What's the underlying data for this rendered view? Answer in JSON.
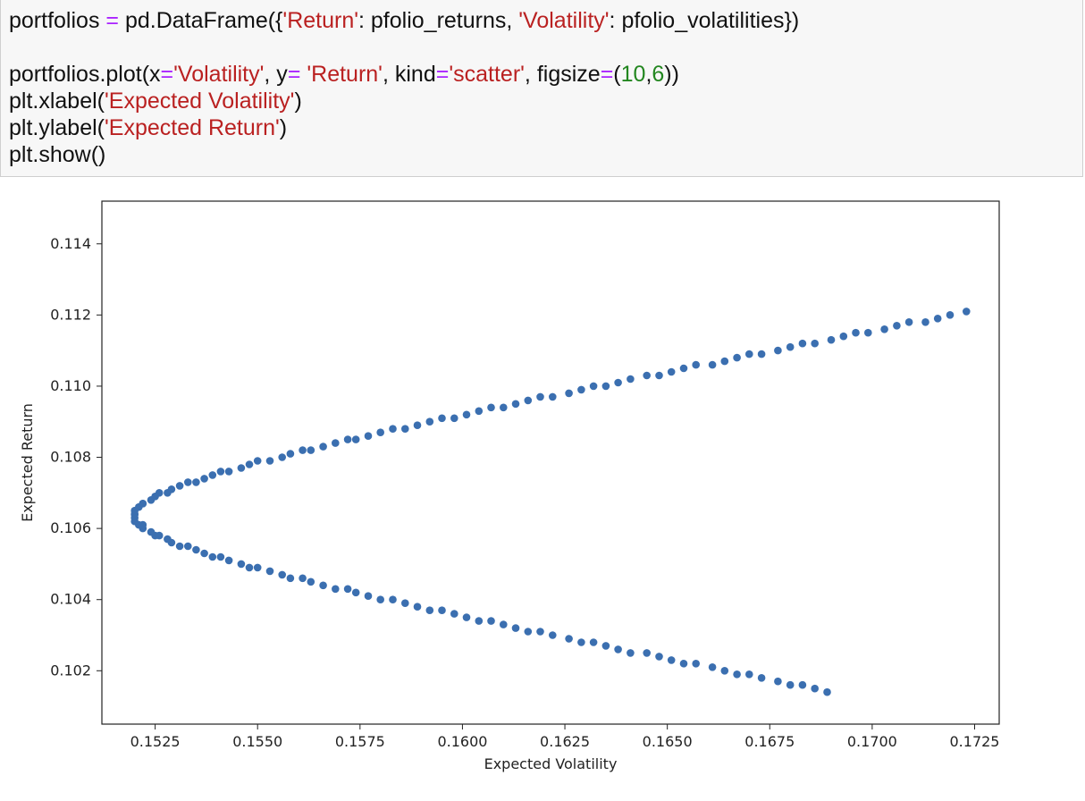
{
  "code_cell": {
    "lines": [
      [
        {
          "t": "text",
          "v": "portfolios "
        },
        {
          "t": "op",
          "v": "="
        },
        {
          "t": "text",
          "v": " pd.DataFrame({"
        },
        {
          "t": "str",
          "v": "'Return'"
        },
        {
          "t": "text",
          "v": ": pfolio_returns, "
        },
        {
          "t": "str",
          "v": "'Volatility'"
        },
        {
          "t": "text",
          "v": ": pfolio_volatilities})"
        }
      ],
      [],
      [
        {
          "t": "text",
          "v": "portfolios.plot(x"
        },
        {
          "t": "op",
          "v": "="
        },
        {
          "t": "str",
          "v": "'Volatility'"
        },
        {
          "t": "text",
          "v": ", y"
        },
        {
          "t": "op",
          "v": "="
        },
        {
          "t": "text",
          "v": " "
        },
        {
          "t": "str",
          "v": "'Return'"
        },
        {
          "t": "text",
          "v": ", kind"
        },
        {
          "t": "op",
          "v": "="
        },
        {
          "t": "str",
          "v": "'scatter'"
        },
        {
          "t": "text",
          "v": ", figsize"
        },
        {
          "t": "op",
          "v": "="
        },
        {
          "t": "text",
          "v": "("
        },
        {
          "t": "num",
          "v": "10"
        },
        {
          "t": "text",
          "v": ","
        },
        {
          "t": "num",
          "v": "6"
        },
        {
          "t": "text",
          "v": "))"
        }
      ],
      [
        {
          "t": "text",
          "v": "plt.xlabel("
        },
        {
          "t": "str",
          "v": "'Expected Volatility'"
        },
        {
          "t": "text",
          "v": ")"
        }
      ],
      [
        {
          "t": "text",
          "v": "plt.ylabel("
        },
        {
          "t": "str",
          "v": "'Expected Return'"
        },
        {
          "t": "text",
          "v": ")"
        }
      ],
      [
        {
          "t": "text",
          "v": "plt.show()"
        }
      ]
    ]
  },
  "colors": {
    "operator": "#aa22ff",
    "string": "#ba2121",
    "number": "#22861f",
    "marker": "#3b6fb0",
    "cell_background": "#f7f7f7"
  },
  "chart_data": {
    "type": "scatter",
    "xlabel": "Expected Volatility",
    "ylabel": "Expected Return",
    "xlim": [
      0.1512,
      0.1731
    ],
    "ylim": [
      0.1005,
      0.1152
    ],
    "xticks": [
      0.1525,
      0.155,
      0.1575,
      0.16,
      0.1625,
      0.165,
      0.1675,
      0.17,
      0.1725
    ],
    "xtick_labels": [
      "0.1525",
      "0.1550",
      "0.1575",
      "0.1600",
      "0.1625",
      "0.1650",
      "0.1675",
      "0.1700",
      "0.1725"
    ],
    "yticks": [
      0.102,
      0.104,
      0.106,
      0.108,
      0.11,
      0.112,
      0.114
    ],
    "ytick_labels": [
      "0.102",
      "0.104",
      "0.106",
      "0.108",
      "0.110",
      "0.112",
      "0.114"
    ],
    "grid": false,
    "marker_color": "#3b6fb0",
    "series": [
      {
        "x": [
          0.1689,
          0.1686,
          0.1683,
          0.168,
          0.1677,
          0.1673,
          0.167,
          0.1667,
          0.1664,
          0.1661,
          0.1657,
          0.1654,
          0.1651,
          0.1648,
          0.1645,
          0.1641,
          0.1638,
          0.1635,
          0.1632,
          0.1629,
          0.1626,
          0.1622,
          0.1619,
          0.1616,
          0.1613,
          0.161,
          0.1607,
          0.1604,
          0.1601,
          0.1598,
          0.1595,
          0.1592,
          0.1589,
          0.1586,
          0.1583,
          0.158,
          0.1577,
          0.1574,
          0.1572,
          0.1569,
          0.1566,
          0.1563,
          0.1561,
          0.1558,
          0.1556,
          0.1553,
          0.155,
          0.1548,
          0.1546,
          0.1543,
          0.1541,
          0.1539,
          0.1537,
          0.1535,
          0.1533,
          0.1531,
          0.1529,
          0.1528,
          0.1526,
          0.1525,
          0.1524,
          0.1522,
          0.1522,
          0.1521,
          0.152,
          0.152,
          0.152,
          0.152,
          0.152,
          0.1521,
          0.1522,
          0.1522,
          0.1524,
          0.1525,
          0.1526,
          0.1528,
          0.1529,
          0.1531,
          0.1533,
          0.1535,
          0.1537,
          0.1539,
          0.1541,
          0.1543,
          0.1546,
          0.1548,
          0.155,
          0.1553,
          0.1556,
          0.1558,
          0.1561,
          0.1563,
          0.1566,
          0.1569,
          0.1572,
          0.1574,
          0.1577,
          0.158,
          0.1583,
          0.1586,
          0.1589,
          0.1592,
          0.1595,
          0.1598,
          0.1601,
          0.1604,
          0.1607,
          0.161,
          0.1613,
          0.1616,
          0.1619,
          0.1622,
          0.1626,
          0.1629,
          0.1632,
          0.1635,
          0.1638,
          0.1641,
          0.1645,
          0.1648,
          0.1651,
          0.1654,
          0.1657,
          0.1661,
          0.1664,
          0.1667,
          0.167,
          0.1673,
          0.1677,
          0.168,
          0.1683,
          0.1686,
          0.169,
          0.1693,
          0.1696,
          0.1699,
          0.1703,
          0.1706,
          0.1709,
          0.1713,
          0.1716,
          0.1719,
          0.1723
        ],
        "y": [
          0.1014,
          0.1015,
          0.1016,
          0.1016,
          0.1017,
          0.1018,
          0.1019,
          0.1019,
          0.102,
          0.1021,
          0.1022,
          0.1022,
          0.1023,
          0.1024,
          0.1025,
          0.1025,
          0.1026,
          0.1027,
          0.1028,
          0.1028,
          0.1029,
          0.103,
          0.1031,
          0.1031,
          0.1032,
          0.1033,
          0.1034,
          0.1034,
          0.1035,
          0.1036,
          0.1037,
          0.1037,
          0.1038,
          0.1039,
          0.104,
          0.104,
          0.1041,
          0.1042,
          0.1043,
          0.1043,
          0.1044,
          0.1045,
          0.1046,
          0.1046,
          0.1047,
          0.1048,
          0.1049,
          0.1049,
          0.105,
          0.1051,
          0.1052,
          0.1052,
          0.1053,
          0.1054,
          0.1055,
          0.1055,
          0.1056,
          0.1057,
          0.1058,
          0.1058,
          0.1059,
          0.106,
          0.1061,
          0.1061,
          0.1062,
          0.1063,
          0.1064,
          0.1064,
          0.1065,
          0.1066,
          0.1067,
          0.1067,
          0.1068,
          0.1069,
          0.107,
          0.107,
          0.1071,
          0.1072,
          0.1073,
          0.1073,
          0.1074,
          0.1075,
          0.1076,
          0.1076,
          0.1077,
          0.1078,
          0.1079,
          0.1079,
          0.108,
          0.1081,
          0.1082,
          0.1082,
          0.1083,
          0.1084,
          0.1085,
          0.1085,
          0.1086,
          0.1087,
          0.1088,
          0.1088,
          0.1089,
          0.109,
          0.1091,
          0.1091,
          0.1092,
          0.1093,
          0.1094,
          0.1094,
          0.1095,
          0.1096,
          0.1097,
          0.1097,
          0.1098,
          0.1099,
          0.11,
          0.11,
          0.1101,
          0.1102,
          0.1103,
          0.1103,
          0.1104,
          0.1105,
          0.1106,
          0.1106,
          0.1107,
          0.1108,
          0.1109,
          0.1109,
          0.111,
          0.1111,
          0.1112,
          0.1112,
          0.1113,
          0.1114,
          0.1115,
          0.1115,
          0.1116,
          0.1117,
          0.1118,
          0.1118,
          0.1119,
          0.112,
          0.1121
        ]
      }
    ]
  }
}
